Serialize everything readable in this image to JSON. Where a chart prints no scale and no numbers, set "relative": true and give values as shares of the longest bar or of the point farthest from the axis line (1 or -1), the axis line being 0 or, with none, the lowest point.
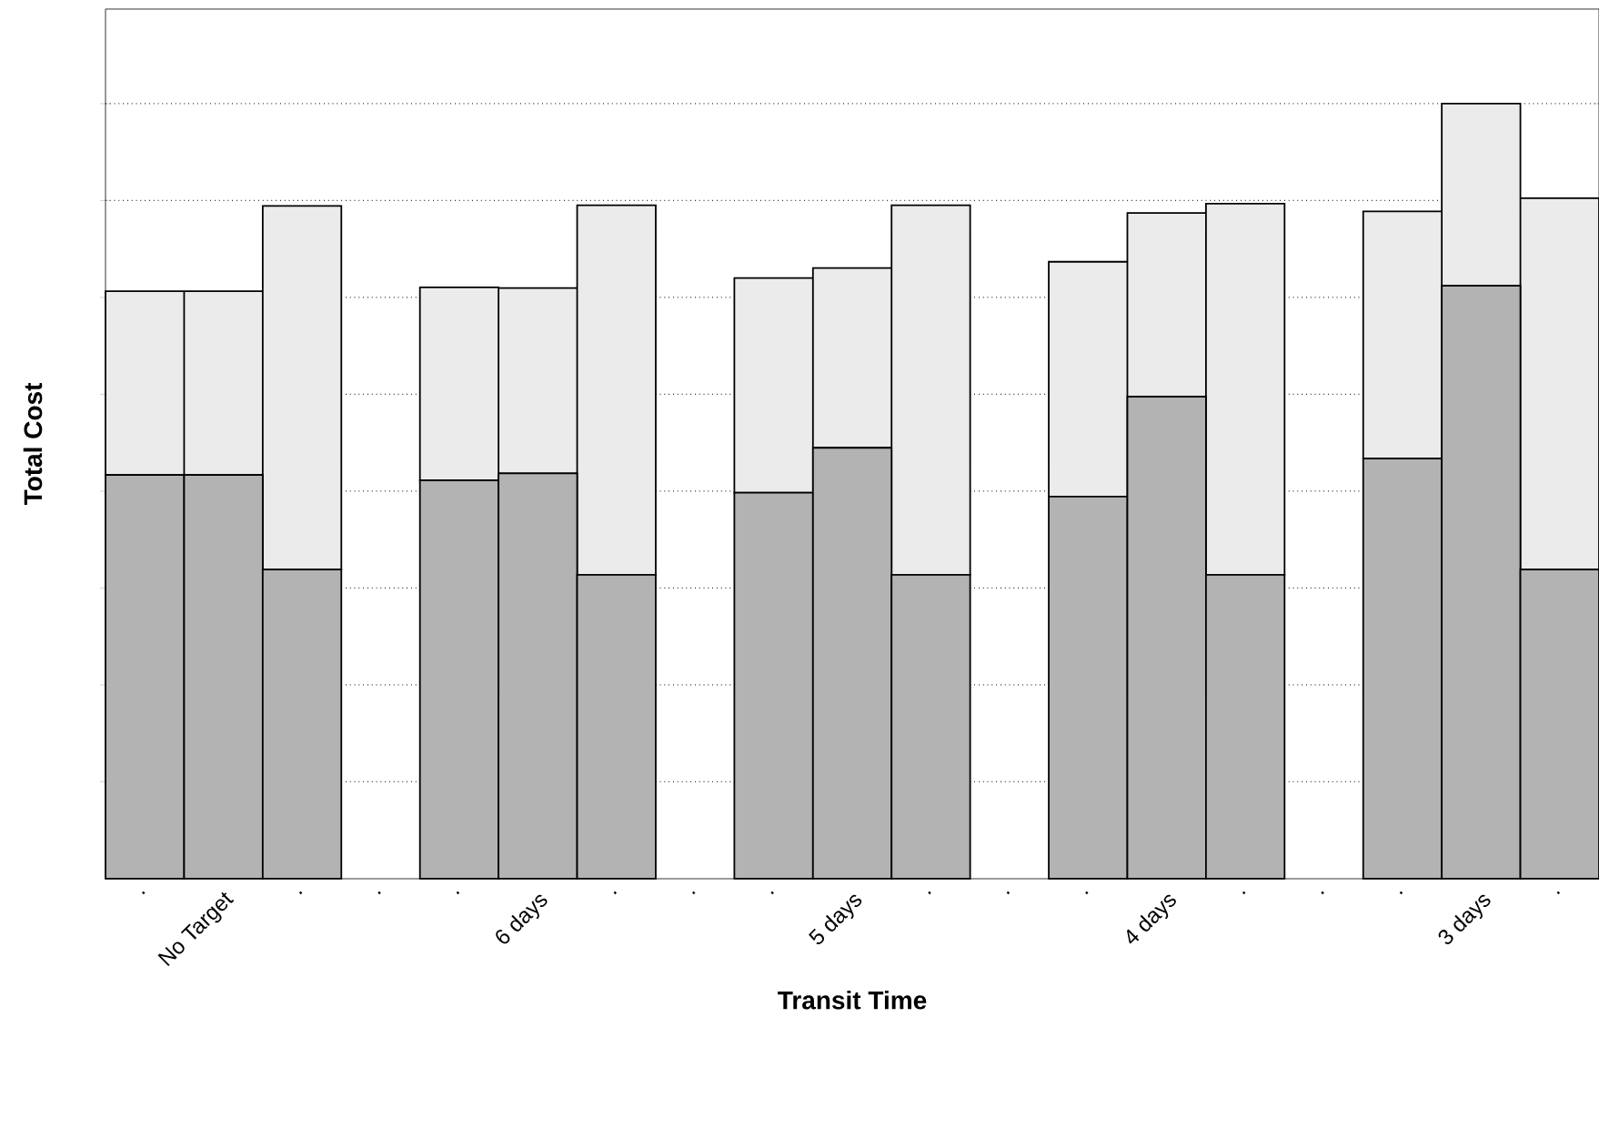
{
  "chart_data": {
    "type": "bar",
    "stacked": true,
    "relative": true,
    "xlabel": "Transit Time",
    "ylabel": "Total Cost",
    "grid": "y",
    "categories": [
      ".",
      "No Target",
      ".",
      ".",
      ".",
      "6 days",
      ".",
      ".",
      ".",
      "5 days",
      ".",
      ".",
      ".",
      "4 days",
      ".",
      ".",
      ".",
      "3 days",
      "."
    ],
    "series": [
      {
        "color": "#b3b3b3",
        "values": [
          0.521,
          0.521,
          0.399,
          null,
          0.514,
          0.523,
          0.392,
          null,
          0.498,
          0.556,
          0.392,
          null,
          0.493,
          0.622,
          0.392,
          null,
          0.542,
          0.765,
          0.399
        ]
      },
      {
        "color": "#ebebeb",
        "values": [
          0.237,
          0.237,
          0.469,
          null,
          0.249,
          0.239,
          0.477,
          null,
          0.277,
          0.232,
          0.477,
          null,
          0.303,
          0.237,
          0.479,
          null,
          0.319,
          0.235,
          0.479
        ]
      }
    ]
  }
}
